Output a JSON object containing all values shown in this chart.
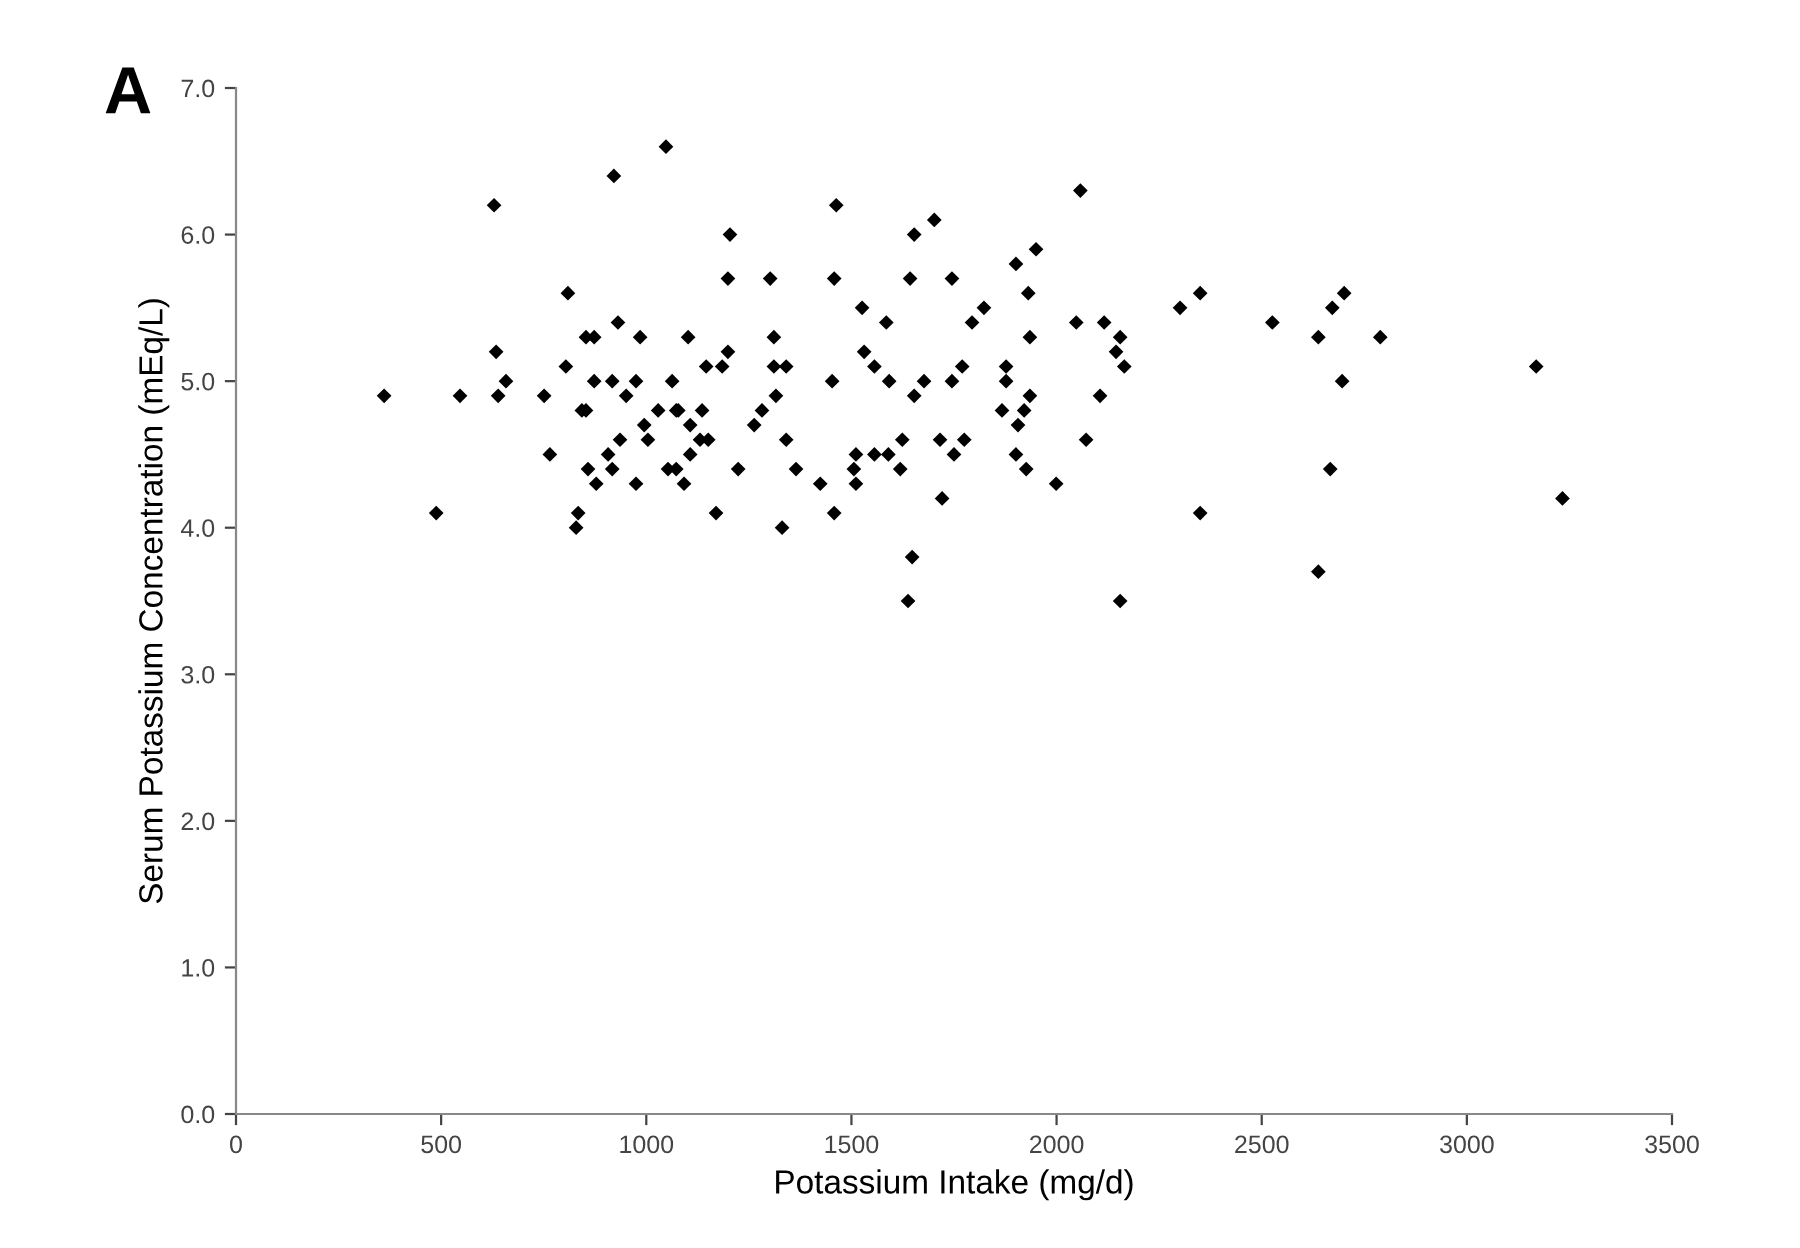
{
  "chart_data": {
    "type": "scatter",
    "title": "A",
    "xlabel": "Potassium Intake (mg/d)",
    "ylabel": "Serum Potassium Concentration (mEq/L)",
    "xlim": [
      0,
      3500
    ],
    "xticks": [
      0,
      500,
      1000,
      1500,
      2000,
      2500,
      3000,
      3500
    ],
    "ylim": [
      0,
      7
    ],
    "yticks": [
      {
        "value": 0,
        "label": "0.0"
      },
      {
        "value": 1,
        "label": "1.0"
      },
      {
        "value": 2,
        "label": "2.0"
      },
      {
        "value": 3,
        "label": "3.0"
      },
      {
        "value": 4,
        "label": "4.0"
      },
      {
        "value": 5,
        "label": "5.0"
      },
      {
        "value": 6,
        "label": "6.0"
      },
      {
        "value": 7,
        "label": "7.0"
      }
    ],
    "grid": false,
    "marker": "diamond",
    "series": [
      {
        "color": "#000000",
        "x": [
          361,
          488,
          546,
          629,
          634,
          639,
          658,
          751,
          765,
          804,
          809,
          829,
          834,
          843,
          853,
          853,
          858,
          873,
          873,
          878,
          907,
          917,
          917,
          921,
          931,
          936,
          951,
          975,
          975,
          985,
          995,
          1004,
          1029,
          1048,
          1053,
          1063,
          1073,
          1073,
          1078,
          1092,
          1102,
          1107,
          1107,
          1131,
          1136,
          1146,
          1151,
          1170,
          1185,
          1199,
          1199,
          1204,
          1224,
          1263,
          1282,
          1302,
          1311,
          1311,
          1316,
          1331,
          1341,
          1341,
          1365,
          1424,
          1453,
          1458,
          1458,
          1463,
          1506,
          1511,
          1511,
          1526,
          1531,
          1556,
          1556,
          1585,
          1590,
          1592,
          1619,
          1624,
          1638,
          1643,
          1648,
          1653,
          1653,
          1677,
          1702,
          1716,
          1721,
          1745,
          1745,
          1750,
          1770,
          1775,
          1794,
          1823,
          1867,
          1877,
          1877,
          1901,
          1901,
          1906,
          1921,
          1926,
          1931,
          1935,
          1935,
          1950,
          1999,
          2048,
          2058,
          2072,
          2106,
          2116,
          2145,
          2155,
          2155,
          2165,
          2301,
          2350,
          2350,
          2526,
          2638,
          2638,
          2667,
          2672,
          2696,
          2701,
          2789,
          3169,
          3233
        ],
        "values": [
          4.9,
          4.1,
          4.9,
          6.2,
          5.2,
          4.9,
          5.0,
          4.9,
          4.5,
          5.1,
          5.6,
          4.0,
          4.1,
          4.8,
          5.3,
          4.8,
          4.4,
          5.3,
          5.0,
          4.3,
          4.5,
          5.0,
          4.4,
          6.4,
          5.4,
          4.6,
          4.9,
          5.0,
          4.3,
          5.3,
          4.7,
          4.6,
          4.8,
          6.6,
          4.4,
          5.0,
          4.8,
          4.4,
          4.8,
          4.3,
          5.3,
          4.7,
          4.5,
          4.6,
          4.8,
          5.1,
          4.6,
          4.1,
          5.1,
          5.7,
          5.2,
          6.0,
          4.4,
          4.7,
          4.8,
          5.7,
          5.3,
          5.1,
          4.9,
          4.0,
          5.1,
          4.6,
          4.4,
          4.3,
          5.0,
          5.7,
          4.1,
          6.2,
          4.4,
          4.5,
          4.3,
          5.5,
          5.2,
          5.1,
          4.5,
          5.4,
          4.5,
          5.0,
          4.4,
          4.6,
          3.5,
          5.7,
          3.8,
          6.0,
          4.9,
          5.0,
          6.1,
          4.6,
          4.2,
          5.7,
          5.0,
          4.5,
          5.1,
          4.6,
          5.4,
          5.5,
          4.8,
          5.1,
          5.0,
          5.8,
          4.5,
          4.7,
          4.8,
          4.4,
          5.6,
          5.3,
          4.9,
          5.9,
          4.3,
          5.4,
          6.3,
          4.6,
          4.9,
          5.4,
          5.2,
          5.3,
          3.5,
          5.1,
          5.5,
          5.6,
          4.1,
          5.4,
          5.3,
          3.7,
          4.4,
          5.5,
          5.0,
          5.6,
          5.3,
          5.1,
          4.2
        ]
      }
    ]
  }
}
